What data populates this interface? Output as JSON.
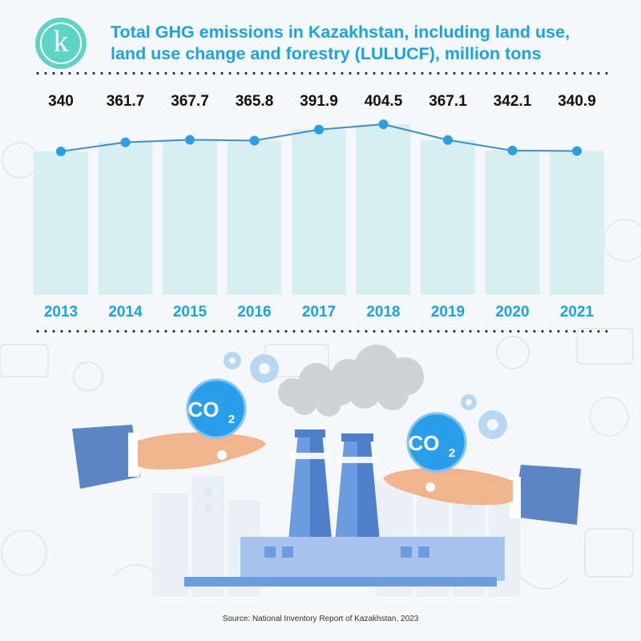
{
  "logo": {
    "letter": "k"
  },
  "title": {
    "line1": "Total GHG emissions in Kazakhstan, including land use,",
    "line2": "land use change and forestry (LULUCF), million tons"
  },
  "chart_data": {
    "type": "bar",
    "categories": [
      "2013",
      "2014",
      "2015",
      "2016",
      "2017",
      "2018",
      "2019",
      "2020",
      "2021"
    ],
    "values": [
      340,
      361.7,
      367.7,
      365.8,
      391.9,
      404.5,
      367.1,
      342.1,
      340.9
    ],
    "value_labels": [
      "340",
      "361.7",
      "367.7",
      "365.8",
      "391.9",
      "404.5",
      "367.1",
      "342.1",
      "340.9"
    ],
    "overlay": "line",
    "grid": false,
    "xlabel": "",
    "ylabel": "",
    "colors": {
      "bar": "#d7eef2",
      "line": "#3a8fd0",
      "marker": "#2b9fe0",
      "year_text": "#1aa3df"
    }
  },
  "illustration": {
    "co2_left": "CO",
    "co2_left_sub": "2",
    "co2_right": "CO",
    "co2_right_sub": "2",
    "icons": [
      "gear-icon",
      "hand-icon",
      "factory-icon",
      "cloud-icon"
    ]
  },
  "source": "Source: National Inventory Report of Kazakhstan, 2023"
}
